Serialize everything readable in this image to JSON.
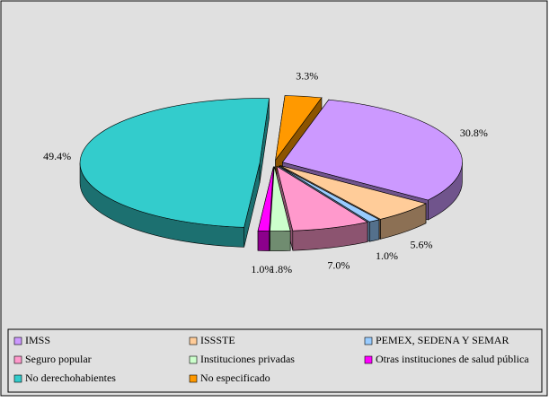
{
  "chart_data": {
    "type": "pie3d",
    "series": [
      {
        "name": "IMSS",
        "color": "#cc99ff",
        "values": [
          30.8
        ],
        "value_labels": [
          "30.8%"
        ]
      },
      {
        "name": "ISSSTE",
        "color": "#ffcc99",
        "values": [
          5.6
        ],
        "value_labels": [
          "5.6%"
        ]
      },
      {
        "name": "PEMEX, SEDENA Y SEMAR",
        "color": "#99ccff",
        "values": [
          1.0
        ],
        "value_labels": [
          "1.0%"
        ]
      },
      {
        "name": "Seguro popular",
        "color": "#ff99cc",
        "values": [
          7.0
        ],
        "value_labels": [
          "7.0%"
        ]
      },
      {
        "name": "Instituciones privadas",
        "color": "#ccffcc",
        "values": [
          1.8
        ],
        "value_labels": [
          "1.8%"
        ]
      },
      {
        "name": "Otras instituciones de salud pública",
        "color": "#ff00ff",
        "values": [
          1.0
        ],
        "value_labels": [
          "1.0%"
        ]
      },
      {
        "name": "No derechohabientes",
        "color": "#33cccc",
        "values": [
          49.4
        ],
        "value_labels": [
          "49.4%"
        ]
      },
      {
        "name": "No especificado",
        "color": "#ff9900",
        "values": [
          3.3
        ],
        "value_labels": [
          "3.3%"
        ]
      }
    ]
  }
}
